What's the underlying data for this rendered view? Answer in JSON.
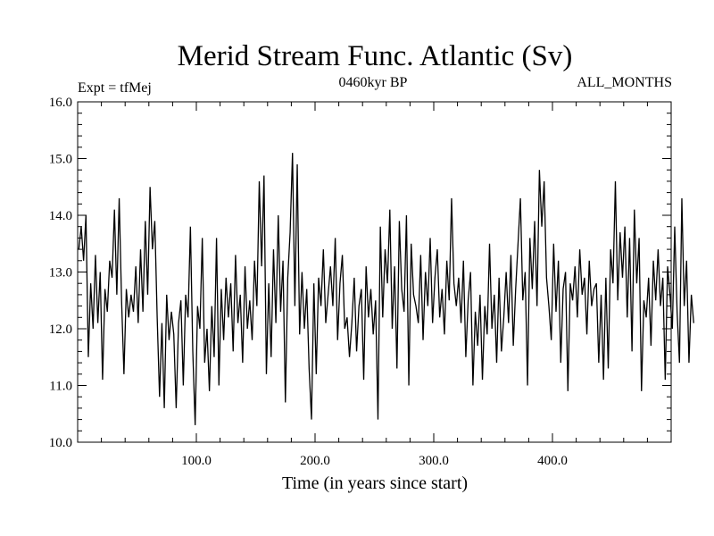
{
  "chart_data": {
    "type": "line",
    "title": "Merid Stream Func. Atlantic (Sv)",
    "subtitle_left": "Expt = tfMej",
    "subtitle_center": "0460kyr BP",
    "subtitle_right": "ALL_MONTHS",
    "xlabel": "Time (in years since start)",
    "ylabel": "",
    "xlim": [
      0,
      500
    ],
    "ylim": [
      10.0,
      16.0
    ],
    "x_ticks": [
      100,
      200,
      300,
      400
    ],
    "x_tick_labels": [
      "100.0",
      "200.0",
      "300.0",
      "400.0"
    ],
    "y_ticks": [
      10,
      11,
      12,
      13,
      14,
      15,
      16
    ],
    "y_tick_labels": [
      "10.0",
      "11.0",
      "12.0",
      "13.0",
      "14.0",
      "15.0",
      "16.0"
    ],
    "grid": false,
    "series": [
      {
        "name": "Merid Stream Func. Atlantic",
        "x_start": 1,
        "x_step": 2,
        "values": [
          13.4,
          13.8,
          13.2,
          14.0,
          11.5,
          12.8,
          12.0,
          13.3,
          12.1,
          13.0,
          11.1,
          12.7,
          12.3,
          13.2,
          12.9,
          14.1,
          12.6,
          14.3,
          12.5,
          11.2,
          12.7,
          12.2,
          12.6,
          12.3,
          13.1,
          12.1,
          13.4,
          12.3,
          13.9,
          12.6,
          14.5,
          13.4,
          13.9,
          12.2,
          10.8,
          12.1,
          10.6,
          12.6,
          11.8,
          12.3,
          11.9,
          10.6,
          12.1,
          12.5,
          11.0,
          12.6,
          12.2,
          13.8,
          11.6,
          10.3,
          12.4,
          12.0,
          13.6,
          11.4,
          12.0,
          10.9,
          12.4,
          11.5,
          13.6,
          11.0,
          12.7,
          11.8,
          12.9,
          12.2,
          12.8,
          11.6,
          13.3,
          12.1,
          12.6,
          11.4,
          13.1,
          12.0,
          12.5,
          11.8,
          13.2,
          12.4,
          14.6,
          13.1,
          14.7,
          11.2,
          12.8,
          11.5,
          13.4,
          12.1,
          14.0,
          12.3,
          13.2,
          10.7,
          12.9,
          13.7,
          15.1,
          12.4,
          14.9,
          11.9,
          13.0,
          12.0,
          12.7,
          11.3,
          10.4,
          12.8,
          11.2,
          12.9,
          12.4,
          13.4,
          12.1,
          12.6,
          13.1,
          12.4,
          13.6,
          11.8,
          12.8,
          13.3,
          12.0,
          12.2,
          11.5,
          12.1,
          12.9,
          11.6,
          12.4,
          12.7,
          11.1,
          13.1,
          12.2,
          12.7,
          11.9,
          12.5,
          10.4,
          13.8,
          12.2,
          13.4,
          12.8,
          14.1,
          12.0,
          13.1,
          11.3,
          13.9,
          12.7,
          12.3,
          14.0,
          11.0,
          13.5,
          12.6,
          12.4,
          12.1,
          13.3,
          11.8,
          13.0,
          12.4,
          13.6,
          12.1,
          12.9,
          13.4,
          12.2,
          12.7,
          11.9,
          13.2,
          12.5,
          14.3,
          12.8,
          12.4,
          12.9,
          12.1,
          13.2,
          11.5,
          12.5,
          13.0,
          11.0,
          12.3,
          11.7,
          12.6,
          11.1,
          12.4,
          11.9,
          13.5,
          12.0,
          12.6,
          11.4,
          12.9,
          11.6,
          12.2,
          13.0,
          12.1,
          13.3,
          11.7,
          12.7,
          13.5,
          14.3,
          12.5,
          13.0,
          11.0,
          13.6,
          12.7,
          13.9,
          12.4,
          14.8,
          13.8,
          14.6,
          12.9,
          12.4,
          11.8,
          13.5,
          12.3,
          13.2,
          11.4,
          12.7,
          13.0,
          10.9,
          12.8,
          12.5,
          13.1,
          12.2,
          13.4,
          12.6,
          12.9,
          11.9,
          13.2,
          12.4,
          12.7,
          12.8,
          11.4,
          12.6,
          11.1,
          12.9,
          11.3,
          13.4,
          12.8,
          14.6,
          12.5,
          13.7,
          12.9,
          13.8,
          12.2,
          13.6,
          11.6,
          14.1,
          12.8,
          13.6,
          10.9,
          12.5,
          12.2,
          12.9,
          11.7,
          13.2,
          12.5,
          13.4,
          12.4,
          12.9,
          11.1,
          13.1,
          12.6,
          12.0,
          13.8,
          12.3,
          11.4,
          14.3,
          12.4,
          13.2,
          11.4,
          12.6,
          12.1
        ]
      }
    ]
  }
}
